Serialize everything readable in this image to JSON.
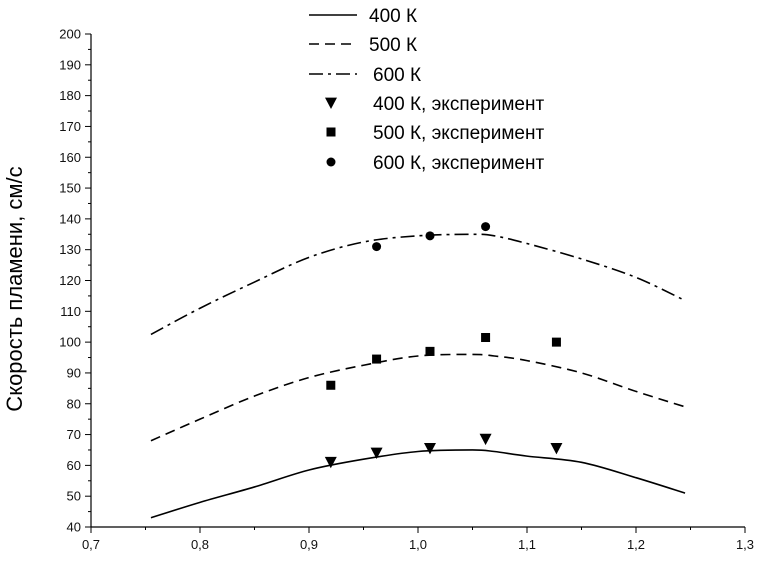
{
  "chart_data": {
    "type": "line",
    "title": "",
    "xlabel": "",
    "ylabel": "Скорость пламени, см/с",
    "xlim": [
      0.7,
      1.3
    ],
    "ylim": [
      40,
      200
    ],
    "xticks": [
      "0,7",
      "0,8",
      "0,9",
      "1,0",
      "1,1",
      "1,2",
      "1,3"
    ],
    "yticks": [
      "40",
      "50",
      "60",
      "70",
      "80",
      "90",
      "100",
      "110",
      "120",
      "130",
      "140",
      "150",
      "160",
      "170",
      "180",
      "190",
      "200"
    ],
    "grid": false,
    "legend_position": "top-center",
    "series": [
      {
        "name": "400 К",
        "kind": "line",
        "dash": "solid",
        "x": [
          0.755,
          0.8,
          0.85,
          0.9,
          0.95,
          1.0,
          1.05,
          1.07,
          1.1,
          1.15,
          1.2,
          1.245
        ],
        "y": [
          43,
          48,
          53,
          58.5,
          62,
          64.5,
          65,
          64.5,
          63,
          61,
          56,
          51
        ]
      },
      {
        "name": "500 К",
        "kind": "line",
        "dash": "dashed",
        "x": [
          0.755,
          0.8,
          0.85,
          0.9,
          0.95,
          1.0,
          1.05,
          1.07,
          1.1,
          1.15,
          1.2,
          1.245
        ],
        "y": [
          68,
          75,
          82.5,
          88.5,
          92.5,
          95.5,
          96,
          95.5,
          94,
          90,
          84,
          79
        ]
      },
      {
        "name": "600 К",
        "kind": "line",
        "dash": "dashdot",
        "x": [
          0.755,
          0.8,
          0.85,
          0.9,
          0.95,
          1.0,
          1.05,
          1.07,
          1.1,
          1.15,
          1.2,
          1.245
        ],
        "y": [
          102.5,
          111,
          119.5,
          127.5,
          132.5,
          134.5,
          135,
          134.5,
          132,
          127,
          121,
          113.5
        ]
      },
      {
        "name": "400 К, эксперимент",
        "kind": "scatter",
        "marker": "triangle-down",
        "x": [
          0.92,
          0.962,
          1.011,
          1.062,
          1.127
        ],
        "y": [
          61,
          64,
          65.5,
          68.5,
          65.5
        ]
      },
      {
        "name": "500 К, эксперимент",
        "kind": "scatter",
        "marker": "square",
        "x": [
          0.92,
          0.962,
          1.011,
          1.062,
          1.127
        ],
        "y": [
          86,
          94.5,
          97,
          101.5,
          100
        ]
      },
      {
        "name": "600 К, эксперимент",
        "kind": "scatter",
        "marker": "circle",
        "x": [
          0.962,
          1.011,
          1.062
        ],
        "y": [
          131,
          134.5,
          137.5
        ]
      }
    ]
  }
}
